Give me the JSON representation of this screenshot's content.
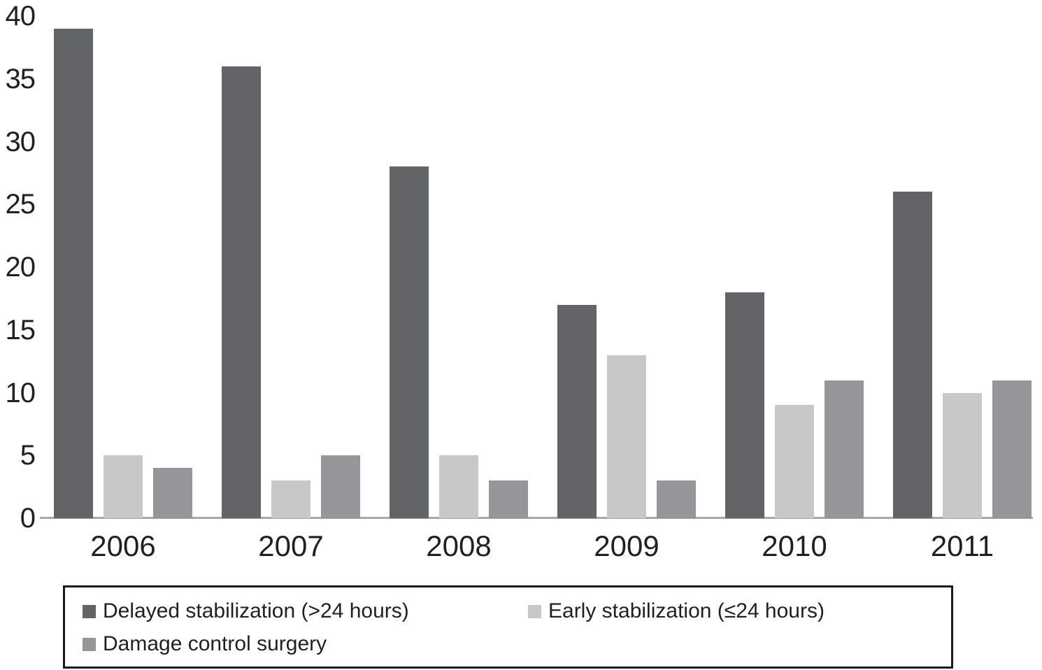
{
  "chart_data": {
    "type": "bar",
    "title": "",
    "xlabel": "",
    "ylabel": "",
    "categories": [
      "2006",
      "2007",
      "2008",
      "2009",
      "2010",
      "2011"
    ],
    "series": [
      {
        "key": "delayed-stabilization",
        "name": "Delayed stabilization (>24 hours)",
        "color": "#626468",
        "values": [
          39,
          36,
          28,
          17,
          18,
          26
        ]
      },
      {
        "key": "early-stabilization",
        "name": "Early stabilization (≤24 hours)",
        "color": "#c7c8ca",
        "values": [
          5,
          3,
          5,
          13,
          9,
          10
        ]
      },
      {
        "key": "damage-control-surgery",
        "name": "Damage control surgery",
        "color": "#94969a",
        "values": [
          4,
          5,
          3,
          3,
          11,
          11
        ]
      }
    ],
    "y_axis": {
      "min": 0,
      "max": 40,
      "step": 5,
      "ticks": [
        0,
        5,
        10,
        15,
        20,
        25,
        30,
        35,
        40
      ]
    },
    "grid": false,
    "legend": {
      "position": "bottom",
      "bordered": true
    },
    "colors": {
      "axis_line": "#a6a8ab",
      "text": "#231f20",
      "background": "#ffffff"
    }
  }
}
